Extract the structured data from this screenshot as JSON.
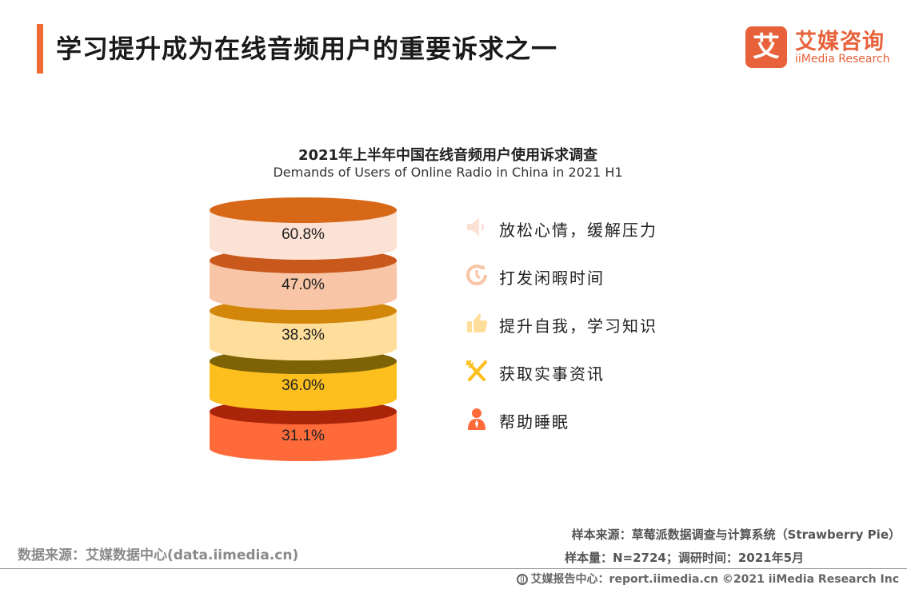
{
  "header": {
    "title": "学习提升成为在线音频用户的重要诉求之一",
    "accent_color": "#f06a36"
  },
  "logo": {
    "mark": "艾",
    "cn": "艾媒咨询",
    "en": "iiMedia Research",
    "color": "#e7623a"
  },
  "chart_data": {
    "type": "bar",
    "title": "2021年上半年中国在线音频用户使用诉求调查",
    "subtitle": "Demands of Users of Online Radio in China in 2021 H1",
    "categories": [
      "放松心情，缓解压力",
      "打发闲暇时间",
      "提升自我，学习知识",
      "获取实事资讯",
      "帮助睡眠"
    ],
    "values": [
      60.8,
      47.0,
      38.3,
      36.0,
      31.1
    ],
    "value_labels": [
      "60.8%",
      "47.0%",
      "38.3%",
      "36.0%",
      "31.1%"
    ],
    "unit": "%",
    "side_colors": [
      "#fbe2d4",
      "#f8c5a6",
      "#ffde9c",
      "#fcbf1e",
      "#fe6a3a"
    ],
    "top_colors": [
      "#d66818",
      "#c8581c",
      "#d2860a",
      "#7d6305",
      "#a92408"
    ]
  },
  "legend": [
    {
      "label": "放松心情，缓解压力",
      "icon": "speaker-icon",
      "color": "#fbe2d4"
    },
    {
      "label": "打发闲暇时间",
      "icon": "clock-icon",
      "color": "#f8c5a6"
    },
    {
      "label": "提升自我，学习知识",
      "icon": "thumbs-up-icon",
      "color": "#ffde9c"
    },
    {
      "label": "获取实事资讯",
      "icon": "fork-knife-icon",
      "color": "#fcbf1e"
    },
    {
      "label": "帮助睡眠",
      "icon": "person-icon",
      "color": "#fe6a3a"
    }
  ],
  "footer": {
    "data_source": "数据来源：艾媒数据中心(data.iimedia.cn)",
    "sample_source": "样本来源：草莓派数据调查与计算系统（Strawberry Pie）",
    "sample_size": "样本量：N=2724；调研时间：2021年5月",
    "report_center": "艾媒报告中心：report.iimedia.cn  ©2021  iiMedia Research  Inc"
  }
}
